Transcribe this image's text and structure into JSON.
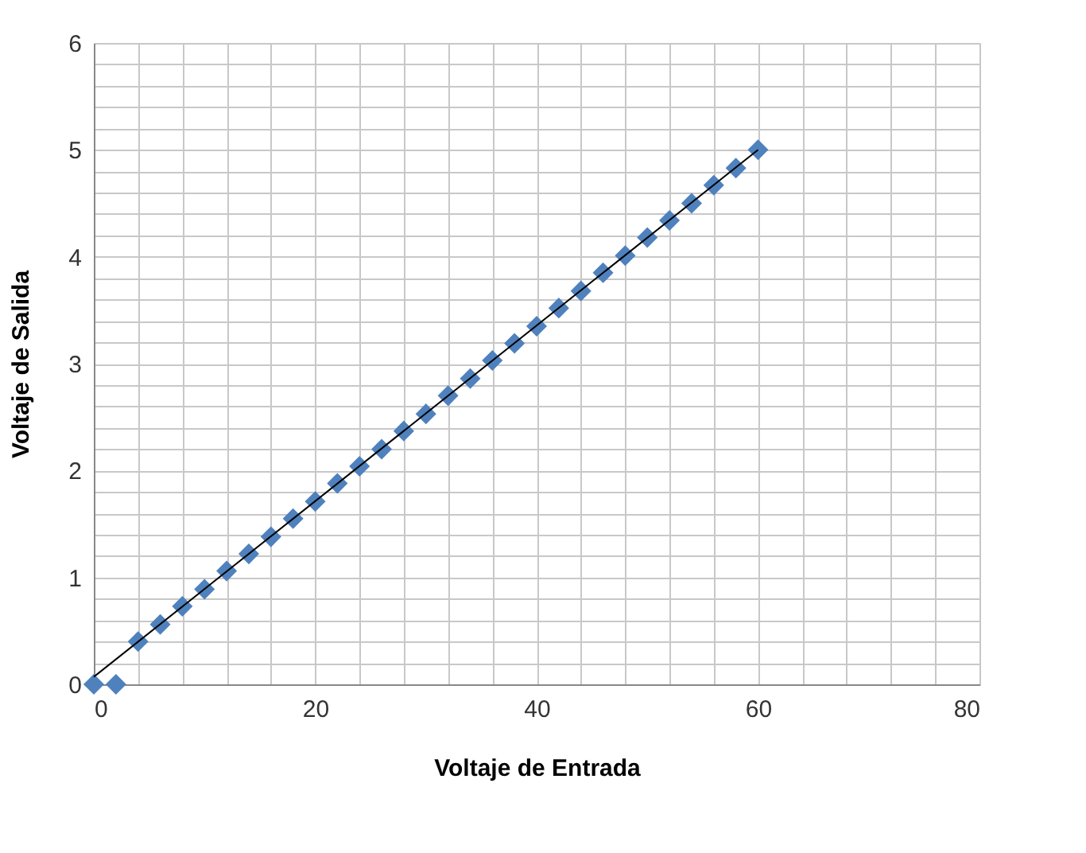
{
  "chart_data": {
    "type": "scatter",
    "xlabel": "Voltaje de Entrada",
    "ylabel": "Voltaje de Salida",
    "xlim": [
      0,
      80
    ],
    "ylim": [
      0,
      6
    ],
    "xticks": [
      0,
      {
        "value": 4,
        "label": null
      },
      {
        "value": 8,
        "label": null
      },
      {
        "value": 12,
        "label": null
      },
      {
        "value": 16,
        "label": null
      },
      20,
      {
        "value": 24,
        "label": null
      },
      {
        "value": 28,
        "label": null
      },
      {
        "value": 32,
        "label": null
      },
      {
        "value": 36,
        "label": null
      },
      40,
      {
        "value": 44,
        "label": null
      },
      {
        "value": 48,
        "label": null
      },
      {
        "value": 52,
        "label": null
      },
      {
        "value": 56,
        "label": null
      },
      60,
      {
        "value": 64,
        "label": null
      },
      {
        "value": 68,
        "label": null
      },
      {
        "value": 72,
        "label": null
      },
      {
        "value": 76,
        "label": null
      },
      80
    ],
    "yticks": [
      0,
      {
        "value": 0.2,
        "label": null
      },
      {
        "value": 0.4,
        "label": null
      },
      {
        "value": 0.6,
        "label": null
      },
      {
        "value": 0.8,
        "label": null
      },
      1,
      {
        "value": 1.2,
        "label": null
      },
      {
        "value": 1.4,
        "label": null
      },
      {
        "value": 1.6,
        "label": null
      },
      {
        "value": 1.8,
        "label": null
      },
      2,
      {
        "value": 2.2,
        "label": null
      },
      {
        "value": 2.4,
        "label": null
      },
      {
        "value": 2.6,
        "label": null
      },
      {
        "value": 2.8,
        "label": null
      },
      3,
      {
        "value": 3.2,
        "label": null
      },
      {
        "value": 3.4,
        "label": null
      },
      {
        "value": 3.6,
        "label": null
      },
      {
        "value": 3.8,
        "label": null
      },
      4,
      {
        "value": 4.2,
        "label": null
      },
      {
        "value": 4.4,
        "label": null
      },
      {
        "value": 4.6,
        "label": null
      },
      {
        "value": 4.8,
        "label": null
      },
      5,
      {
        "value": 5.2,
        "label": null
      },
      {
        "value": 5.4,
        "label": null
      },
      {
        "value": 5.6,
        "label": null
      },
      {
        "value": 5.8,
        "label": null
      },
      6
    ],
    "grid": true,
    "legend": false,
    "marker": "diamond",
    "series": [
      {
        "color": "#4f81bd",
        "x": [
          0,
          2,
          4,
          6,
          8,
          10,
          12,
          14,
          16,
          18,
          20,
          22,
          24,
          26,
          28,
          30,
          32,
          34,
          36,
          38,
          40,
          42,
          44,
          46,
          48,
          50,
          52,
          54,
          56,
          58,
          60
        ],
        "values": [
          0,
          0,
          0.4,
          0.56,
          0.73,
          0.89,
          1.06,
          1.22,
          1.38,
          1.55,
          1.71,
          1.88,
          2.04,
          2.2,
          2.37,
          2.53,
          2.7,
          2.86,
          3.03,
          3.19,
          3.35,
          3.52,
          3.68,
          3.85,
          4.01,
          4.18,
          4.34,
          4.5,
          4.67,
          4.83,
          5
        ]
      },
      {
        "type": "line",
        "color": "#000000",
        "x": [
          0,
          60
        ],
        "values": [
          0.07,
          5
        ],
        "line_style": "solid",
        "marker": "none"
      }
    ]
  }
}
